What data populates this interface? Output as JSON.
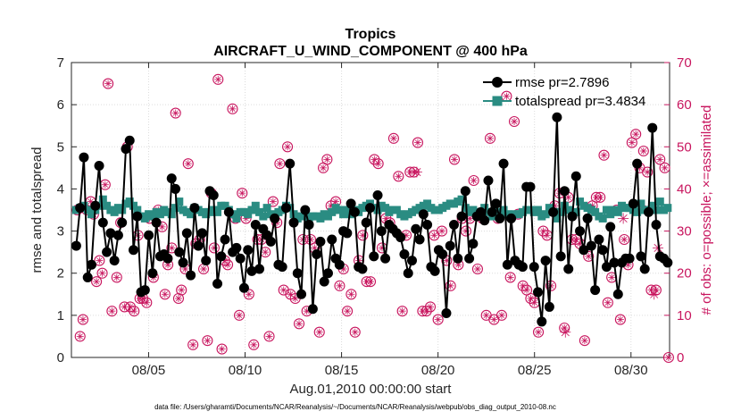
{
  "chart_data": {
    "type": "line",
    "title": "Tropics",
    "subtitle": "AIRCRAFT_U_WIND_COMPONENT @ 400 hPa",
    "xlabel": "Aug.01,2010 00:00:00 start",
    "ylabel": "rmse and totalspread",
    "y2label": "# of obs: o=possible; ×=assimilated",
    "footer": "data file: /Users/gharamti/Documents/NCAR/Reanalysis/~/Documents/NCAR/Reanalysis/webpub/obs_diag_output_2010-08.nc",
    "xlim": [
      1.0,
      32.0
    ],
    "ylim": [
      0,
      7
    ],
    "y2lim": [
      0,
      70
    ],
    "x_ticks": [
      5,
      10,
      15,
      20,
      25,
      30
    ],
    "x_tick_labels": [
      "08/05",
      "08/10",
      "08/15",
      "08/20",
      "08/25",
      "08/30"
    ],
    "y_ticks": [
      0,
      1,
      2,
      3,
      4,
      5,
      6,
      7
    ],
    "y2_ticks": [
      0,
      10,
      20,
      30,
      40,
      50,
      60,
      70
    ],
    "grid": true,
    "legend_position": "top-right",
    "colors": {
      "rmse": "#000000",
      "totalspread": "#2a8c82",
      "obs": "#c8155e"
    },
    "series": [
      {
        "name": "rmse pr=2.7896",
        "marker": "circle",
        "values": [
          2.65,
          3.55,
          4.75,
          1.9,
          2.2,
          3.6,
          4.55,
          3.2,
          2.5,
          2.95,
          2.3,
          2.9,
          3.2,
          4.95,
          5.15,
          2.55,
          3.35,
          1.55,
          1.6,
          2.9,
          2.0,
          3.2,
          2.4,
          2.45,
          2.35,
          4.25,
          4.0,
          2.5,
          2.25,
          2.95,
          1.95,
          3.55,
          2.65,
          2.95,
          2.3,
          3.95,
          3.85,
          1.75,
          2.4,
          2.8,
          3.45,
          2.5,
          2.6,
          2.35,
          1.65,
          2.55,
          2.05,
          3.15,
          2.1,
          3.05,
          2.9,
          2.75,
          3.3,
          2.2,
          2.15,
          3.55,
          4.6,
          3.2,
          2.0,
          1.5,
          3.5,
          3.15,
          1.15,
          2.45,
          2.75,
          1.8,
          2.0,
          2.8,
          2.35,
          2.2,
          3.0,
          2.95,
          3.65,
          3.45,
          2.15,
          2.1,
          3.2,
          3.55,
          2.4,
          3.85,
          3.0,
          2.35,
          3.15,
          3.05,
          2.95,
          2.85,
          2.45,
          2.0,
          2.3,
          3.05,
          2.8,
          3.4,
          3.15,
          2.15,
          2.05,
          2.55,
          2.45,
          1.05,
          2.65,
          3.15,
          2.35,
          3.35,
          3.95,
          2.35,
          2.7,
          3.35,
          3.45,
          3.25,
          4.2,
          3.45,
          3.65,
          3.3,
          4.6,
          2.2,
          3.3,
          2.3,
          2.2,
          2.15,
          4.05,
          4.05,
          2.15,
          1.55,
          0.85,
          2.3,
          1.2,
          3.45,
          5.7,
          2.4,
          3.95,
          2.1,
          3.35,
          4.3,
          3.0,
          2.55,
          3.3,
          2.65,
          1.6,
          2.8,
          2.55,
          2.15,
          3.1,
          2.25,
          1.5,
          2.25,
          2.35,
          2.35,
          3.65,
          4.6,
          2.4,
          2.1,
          3.45,
          5.45,
          3.15,
          2.4,
          2.35,
          2.25
        ]
      },
      {
        "name": "totalspread pr=3.4834",
        "marker": "square",
        "values": [
          3.5,
          3.55,
          3.6,
          3.5,
          3.4,
          3.5,
          3.6,
          3.75,
          3.6,
          3.5,
          3.45,
          3.55,
          3.5,
          3.65,
          3.7,
          3.6,
          3.5,
          3.35,
          3.3,
          3.4,
          3.35,
          3.45,
          3.4,
          3.5,
          3.45,
          3.4,
          3.55,
          3.7,
          3.5,
          3.45,
          3.4,
          3.55,
          3.5,
          3.45,
          3.4,
          3.45,
          3.5,
          3.45,
          3.6,
          3.6,
          3.5,
          3.4,
          3.3,
          3.45,
          3.45,
          3.4,
          3.5,
          3.6,
          3.45,
          3.35,
          3.55,
          3.4,
          3.35,
          3.45,
          3.5,
          3.6,
          3.55,
          3.4,
          3.3,
          3.35,
          3.4,
          3.3,
          3.35,
          3.35,
          3.3,
          3.4,
          3.35,
          3.45,
          3.55,
          3.5,
          3.4,
          3.5,
          3.4,
          3.5,
          3.45,
          3.55,
          3.6,
          3.65,
          3.55,
          3.5,
          3.6,
          3.55,
          3.45,
          3.5,
          3.5,
          3.4,
          3.35,
          3.4,
          3.45,
          3.5,
          3.55,
          3.6,
          3.65,
          3.55,
          3.5,
          3.5,
          3.55,
          3.6,
          3.65,
          3.65,
          3.7,
          3.75,
          3.55,
          3.45,
          3.5,
          3.4,
          3.45,
          3.55,
          3.45,
          3.35,
          3.45,
          3.4,
          3.5,
          3.4,
          3.35,
          3.4,
          3.4,
          3.45,
          3.5,
          3.5,
          3.45,
          3.5,
          3.35,
          3.4,
          3.55,
          3.45,
          3.3,
          3.45,
          3.6,
          3.5,
          3.4,
          3.45,
          3.7,
          3.6,
          3.55,
          3.5,
          3.45,
          3.35,
          3.3,
          3.5,
          3.4,
          3.5,
          3.45,
          3.6,
          3.55,
          3.55,
          3.5,
          3.45,
          3.65,
          3.5,
          3.5,
          3.6,
          3.5,
          3.7,
          3.5,
          3.55
        ]
      },
      {
        "name": "obs possible",
        "axis": "right",
        "marker": "circle-open",
        "points": [
          [
            1.3,
            35
          ],
          [
            1.45,
            5
          ],
          [
            1.6,
            9
          ],
          [
            1.8,
            35
          ],
          [
            2.0,
            37
          ],
          [
            2.15,
            34
          ],
          [
            2.3,
            18
          ],
          [
            2.45,
            23
          ],
          [
            2.6,
            20
          ],
          [
            2.75,
            41
          ],
          [
            2.9,
            65
          ],
          [
            3.1,
            11
          ],
          [
            3.35,
            19
          ],
          [
            3.55,
            32
          ],
          [
            3.75,
            12
          ],
          [
            3.9,
            50
          ],
          [
            4.05,
            12
          ],
          [
            4.25,
            11
          ],
          [
            4.45,
            29
          ],
          [
            4.55,
            14
          ],
          [
            4.7,
            14
          ],
          [
            4.9,
            13
          ],
          [
            5.05,
            33
          ],
          [
            5.25,
            19
          ],
          [
            5.5,
            35
          ],
          [
            5.7,
            31
          ],
          [
            5.85,
            15
          ],
          [
            6.0,
            22
          ],
          [
            6.2,
            26
          ],
          [
            6.4,
            58
          ],
          [
            6.55,
            14
          ],
          [
            6.7,
            16
          ],
          [
            6.9,
            21
          ],
          [
            7.05,
            46
          ],
          [
            7.3,
            3
          ],
          [
            7.45,
            27
          ],
          [
            7.65,
            28
          ],
          [
            7.85,
            21
          ],
          [
            8.05,
            4
          ],
          [
            8.25,
            39
          ],
          [
            8.4,
            26
          ],
          [
            8.6,
            66
          ],
          [
            8.8,
            2
          ],
          [
            8.95,
            23
          ],
          [
            9.1,
            22
          ],
          [
            9.35,
            59
          ],
          [
            9.5,
            33
          ],
          [
            9.7,
            10
          ],
          [
            9.85,
            39
          ],
          [
            10.05,
            33
          ],
          [
            10.2,
            15
          ],
          [
            10.45,
            3
          ],
          [
            10.65,
            28
          ],
          [
            10.85,
            28
          ],
          [
            11.05,
            25
          ],
          [
            11.25,
            5
          ],
          [
            11.45,
            37
          ],
          [
            11.65,
            32
          ],
          [
            11.8,
            46
          ],
          [
            12.0,
            16
          ],
          [
            12.2,
            50
          ],
          [
            12.35,
            15
          ],
          [
            12.6,
            14
          ],
          [
            12.8,
            8
          ],
          [
            13.0,
            28
          ],
          [
            13.2,
            11
          ],
          [
            13.4,
            28
          ],
          [
            13.6,
            26
          ],
          [
            13.85,
            6
          ],
          [
            14.05,
            45
          ],
          [
            14.25,
            47
          ],
          [
            14.45,
            36
          ],
          [
            14.7,
            37
          ],
          [
            14.9,
            17
          ],
          [
            15.1,
            21
          ],
          [
            15.3,
            11
          ],
          [
            15.5,
            15
          ],
          [
            15.7,
            6
          ],
          [
            15.9,
            23
          ],
          [
            16.1,
            29
          ],
          [
            16.3,
            18
          ],
          [
            16.5,
            18
          ],
          [
            16.7,
            47
          ],
          [
            16.9,
            46
          ],
          [
            17.1,
            26
          ],
          [
            17.3,
            33
          ],
          [
            17.5,
            32
          ],
          [
            17.7,
            52
          ],
          [
            17.95,
            43
          ],
          [
            18.15,
            11
          ],
          [
            18.35,
            29
          ],
          [
            18.55,
            44
          ],
          [
            18.75,
            44
          ],
          [
            18.95,
            51
          ],
          [
            19.2,
            11
          ],
          [
            19.4,
            11
          ],
          [
            19.6,
            12
          ],
          [
            19.8,
            29
          ],
          [
            20.0,
            9
          ],
          [
            20.2,
            30
          ],
          [
            20.45,
            23
          ],
          [
            20.65,
            17
          ],
          [
            20.85,
            47
          ],
          [
            21.05,
            22
          ],
          [
            21.25,
            33
          ],
          [
            21.45,
            30
          ],
          [
            21.65,
            33
          ],
          [
            21.85,
            42
          ],
          [
            22.05,
            21
          ],
          [
            22.3,
            33
          ],
          [
            22.5,
            10
          ],
          [
            22.7,
            52
          ],
          [
            22.9,
            9
          ],
          [
            23.1,
            33
          ],
          [
            23.3,
            10
          ],
          [
            23.55,
            62
          ],
          [
            23.75,
            19
          ],
          [
            23.95,
            56
          ],
          [
            24.15,
            34
          ],
          [
            24.4,
            17
          ],
          [
            24.6,
            16
          ],
          [
            24.8,
            14
          ],
          [
            25.0,
            13
          ],
          [
            25.2,
            6
          ],
          [
            25.45,
            30
          ],
          [
            25.65,
            29
          ],
          [
            25.85,
            17
          ],
          [
            26.05,
            36
          ],
          [
            26.3,
            39
          ],
          [
            26.55,
            7
          ],
          [
            26.75,
            38
          ],
          [
            26.95,
            28
          ],
          [
            27.15,
            28
          ],
          [
            27.35,
            27
          ],
          [
            27.6,
            4
          ],
          [
            27.8,
            24
          ],
          [
            28.0,
            36
          ],
          [
            28.2,
            38
          ],
          [
            28.4,
            38
          ],
          [
            28.6,
            48
          ],
          [
            28.8,
            13
          ],
          [
            29.0,
            19
          ],
          [
            29.25,
            35
          ],
          [
            29.45,
            9
          ],
          [
            29.65,
            28
          ],
          [
            29.85,
            22
          ],
          [
            30.05,
            51
          ],
          [
            30.25,
            53
          ],
          [
            30.45,
            45
          ],
          [
            30.65,
            49
          ],
          [
            30.85,
            44
          ],
          [
            31.05,
            16
          ],
          [
            31.3,
            16
          ],
          [
            31.5,
            47
          ],
          [
            31.75,
            45
          ],
          [
            31.95,
            0
          ]
        ]
      },
      {
        "name": "obs assimilated",
        "axis": "right",
        "marker": "asterisk",
        "points": [
          [
            18.9,
            44
          ],
          [
            26.6,
            6
          ],
          [
            29.6,
            33
          ],
          [
            30.5,
            36
          ],
          [
            31.2,
            15
          ],
          [
            31.4,
            26
          ]
        ]
      }
    ]
  }
}
